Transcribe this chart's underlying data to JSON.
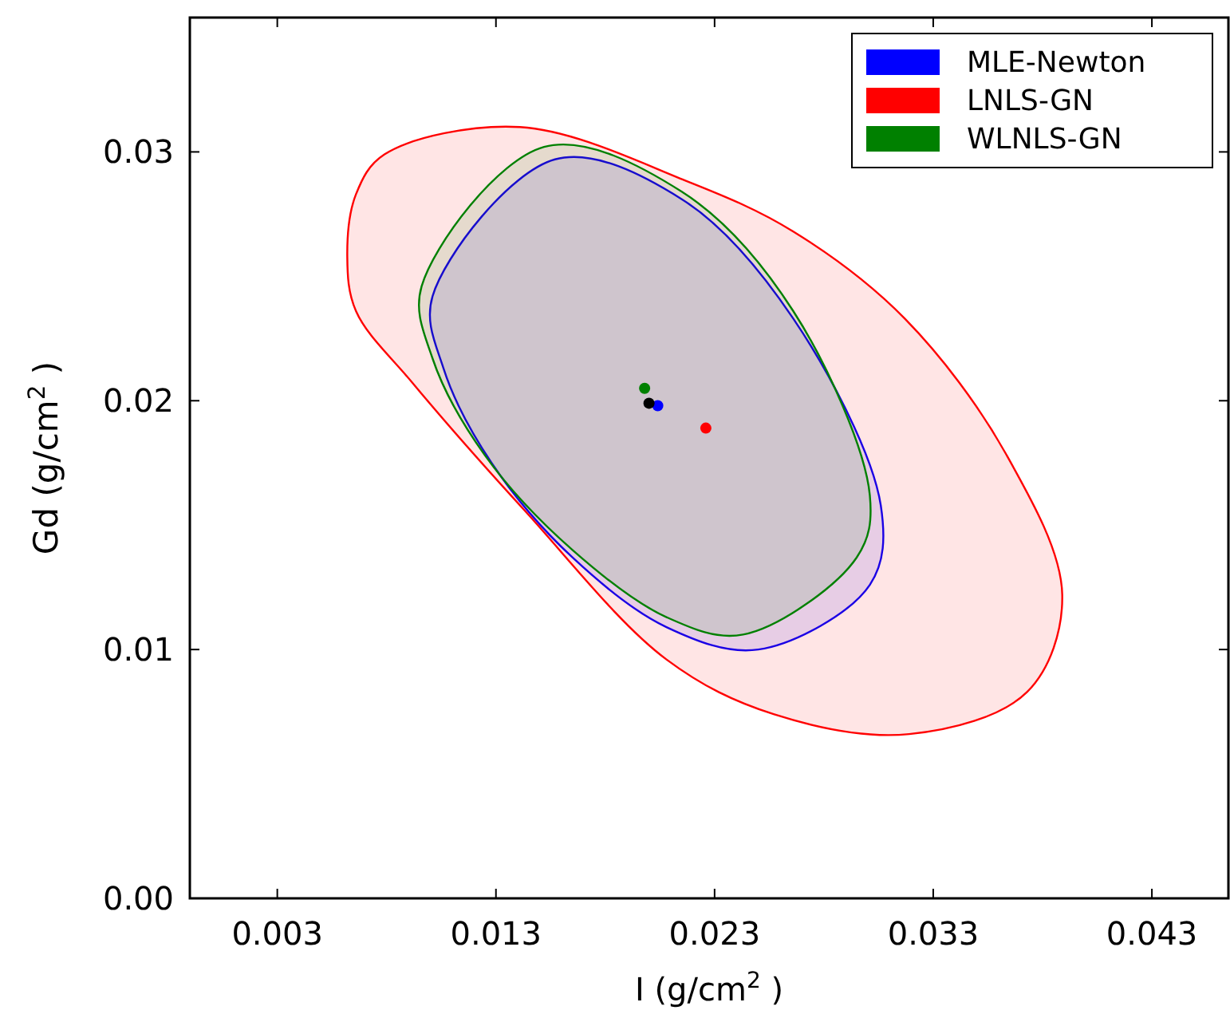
{
  "chart_data": {
    "type": "area",
    "xlabel": "I (g/cm$^{2}$ )",
    "ylabel": "Gd (g/cm$^{2}$ )",
    "xlim": [
      -0.001,
      0.0465
    ],
    "xticks": [
      0.003,
      0.013,
      0.023,
      0.033,
      0.043
    ],
    "ylim": [
      0,
      0.0354
    ],
    "yticks": [
      {
        "value": 0,
        "label": "0.00"
      },
      0.01,
      0.02,
      0.03
    ],
    "grid": false,
    "legend": "top right",
    "series": [
      {
        "name": "MLE-Newton",
        "color": "#0000ff",
        "x": [
          0.0101,
          0.0157,
          0.0215,
          0.0266,
          0.0306,
          0.0301,
          0.025,
          0.0208,
          0.0165,
          0.0128,
          0.0106
        ],
        "values": [
          0.0242,
          0.0297,
          0.0281,
          0.0233,
          0.0158,
          0.0126,
          0.01,
          0.0109,
          0.0137,
          0.0175,
          0.0213
        ]
      },
      {
        "name": "LNLS-GN",
        "color": "#ff0000",
        "x": [
          0.0062,
          0.0066,
          0.0079,
          0.0141,
          0.0218,
          0.0266,
          0.0317,
          0.0363,
          0.0389,
          0.0373,
          0.0319,
          0.0257,
          0.0208,
          0.0143,
          0.0092,
          0.0066
        ],
        "values": [
          0.0258,
          0.0283,
          0.0299,
          0.031,
          0.0288,
          0.0268,
          0.0233,
          0.0179,
          0.0122,
          0.0083,
          0.0066,
          0.0074,
          0.0096,
          0.0156,
          0.0207,
          0.0236
        ]
      },
      {
        "name": "WLNLS-GN",
        "color": "#008000",
        "x": [
          0.0096,
          0.0152,
          0.0215,
          0.0266,
          0.0301,
          0.0295,
          0.0243,
          0.0208,
          0.0165,
          0.0125,
          0.0101
        ],
        "values": [
          0.0246,
          0.0302,
          0.0284,
          0.0236,
          0.0162,
          0.0137,
          0.0106,
          0.0113,
          0.014,
          0.0178,
          0.0217
        ]
      },
      {
        "color": "#0000ff",
        "type": "scatter",
        "marker": "circle",
        "x": [
          0.0204
        ],
        "values": [
          0.0198
        ]
      },
      {
        "color": "#ff0000",
        "type": "scatter",
        "marker": "circle",
        "x": [
          0.0226
        ],
        "values": [
          0.0189
        ]
      },
      {
        "color": "#008000",
        "type": "scatter",
        "marker": "circle",
        "x": [
          0.0198
        ],
        "values": [
          0.0205
        ]
      },
      {
        "color": "#000000",
        "type": "scatter",
        "marker": "circle",
        "x": [
          0.02
        ],
        "values": [
          0.0199
        ]
      }
    ]
  }
}
